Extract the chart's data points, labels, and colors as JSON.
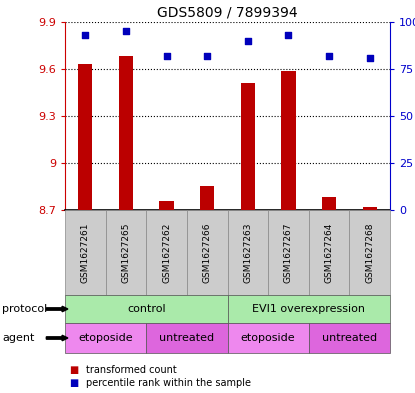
{
  "title": "GDS5809 / 7899394",
  "samples": [
    "GSM1627261",
    "GSM1627265",
    "GSM1627262",
    "GSM1627266",
    "GSM1627263",
    "GSM1627267",
    "GSM1627264",
    "GSM1627268"
  ],
  "transformed_counts": [
    9.63,
    9.68,
    8.76,
    8.85,
    9.51,
    9.59,
    8.78,
    8.72
  ],
  "percentile_ranks": [
    93,
    95,
    82,
    82,
    90,
    93,
    82,
    81
  ],
  "ylim": [
    8.7,
    9.9
  ],
  "yticks": [
    8.7,
    9.0,
    9.3,
    9.6,
    9.9
  ],
  "ytick_labels": [
    "8.7",
    "9",
    "9.3",
    "9.6",
    "9.9"
  ],
  "right_yticks": [
    0,
    25,
    50,
    75,
    100
  ],
  "right_ytick_labels": [
    "0",
    "25",
    "50",
    "75",
    "100%"
  ],
  "bar_color": "#bb0000",
  "dot_color": "#0000bb",
  "protocol_labels": [
    {
      "label": "control",
      "start": 0,
      "end": 4
    },
    {
      "label": "EVI1 overexpression",
      "start": 4,
      "end": 8
    }
  ],
  "agent_labels": [
    {
      "label": "etoposide",
      "start": 0,
      "end": 2
    },
    {
      "label": "untreated",
      "start": 2,
      "end": 4
    },
    {
      "label": "etoposide",
      "start": 4,
      "end": 6
    },
    {
      "label": "untreated",
      "start": 6,
      "end": 8
    }
  ],
  "protocol_color": "#aaeaaa",
  "agent_etoposide_color": "#ee88ee",
  "agent_untreated_color": "#dd66dd",
  "sample_bg_color": "#cccccc",
  "legend_red_label": "transformed count",
  "legend_blue_label": "percentile rank within the sample",
  "left_axis_color": "#cc0000",
  "right_axis_color": "#0000cc"
}
